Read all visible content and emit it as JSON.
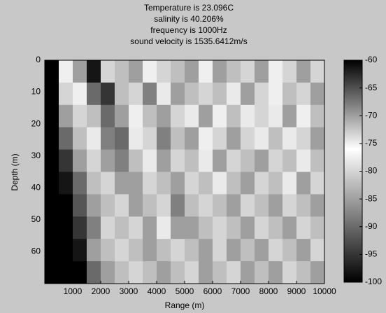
{
  "chart_data": {
    "type": "heatmap",
    "title_lines": [
      "Temperature is 23.096C",
      "salinity is 40.206%",
      "frequency is 1000Hz",
      "sound velocity is 1535.6412m/s"
    ],
    "xlabel": "Range (m)",
    "ylabel": "Depth (m)",
    "xlim": [
      0,
      10000
    ],
    "xticks": [
      1000,
      2000,
      3000,
      4000,
      5000,
      6000,
      7000,
      8000,
      9000,
      10000
    ],
    "ylim": [
      0,
      70
    ],
    "yticks": [
      0,
      10,
      20,
      30,
      40,
      50,
      60
    ],
    "y_reversed": true,
    "clim": [
      -100,
      -60
    ],
    "cticks": [
      -100,
      -95,
      -90,
      -85,
      -80,
      -75,
      -70,
      -65,
      -60
    ],
    "xbins": [
      0,
      500,
      1000,
      1500,
      2000,
      2500,
      3000,
      3500,
      4000,
      4500,
      5000,
      5500,
      6000,
      6500,
      7000,
      7500,
      8000,
      8500,
      9000,
      9500,
      10000
    ],
    "ybins": [
      0,
      7,
      14,
      21,
      28,
      35,
      42,
      49,
      56,
      63,
      70
    ],
    "z": [
      [
        -100,
        -75,
        -70,
        -98,
        -80,
        -72,
        -85,
        -75,
        -80,
        -82,
        -70,
        -75,
        -85,
        -72,
        -80,
        -85,
        -75,
        -80,
        -85,
        -80
      ],
      [
        -100,
        -80,
        -75,
        -90,
        -95,
        -72,
        -80,
        -88,
        -78,
        -85,
        -72,
        -80,
        -82,
        -78,
        -85,
        -80,
        -75,
        -82,
        -80,
        -85
      ],
      [
        -100,
        -85,
        -80,
        -82,
        -90,
        -85,
        -75,
        -82,
        -85,
        -80,
        -78,
        -85,
        -75,
        -82,
        -78,
        -80,
        -78,
        -85,
        -75,
        -82
      ],
      [
        -100,
        -90,
        -82,
        -78,
        -88,
        -90,
        -78,
        -80,
        -88,
        -82,
        -85,
        -75,
        -80,
        -85,
        -80,
        -78,
        -82,
        -78,
        -80,
        -85
      ],
      [
        -100,
        -95,
        -85,
        -80,
        -85,
        -88,
        -82,
        -78,
        -85,
        -80,
        -82,
        -78,
        -85,
        -80,
        -82,
        -85,
        -80,
        -82,
        -78,
        -82
      ],
      [
        -100,
        -98,
        -90,
        -82,
        -80,
        -85,
        -85,
        -80,
        -82,
        -85,
        -80,
        -82,
        -78,
        -82,
        -85,
        -80,
        -82,
        -78,
        -85,
        -80
      ],
      [
        -100,
        -100,
        -92,
        -85,
        -82,
        -80,
        -85,
        -82,
        -80,
        -88,
        -82,
        -80,
        -82,
        -85,
        -80,
        -82,
        -85,
        -80,
        -82,
        -85
      ],
      [
        -100,
        -100,
        -95,
        -88,
        -80,
        -82,
        -80,
        -85,
        -78,
        -85,
        -85,
        -82,
        -80,
        -82,
        -85,
        -80,
        -82,
        -85,
        -80,
        -82
      ],
      [
        -100,
        -100,
        -98,
        -85,
        -82,
        -80,
        -82,
        -85,
        -82,
        -80,
        -82,
        -85,
        -80,
        -85,
        -82,
        -85,
        -80,
        -82,
        -85,
        -80
      ],
      [
        -100,
        -100,
        -100,
        -90,
        -85,
        -82,
        -80,
        -82,
        -85,
        -82,
        -80,
        -85,
        -82,
        -80,
        -85,
        -82,
        -85,
        -80,
        -82,
        -85
      ]
    ]
  }
}
